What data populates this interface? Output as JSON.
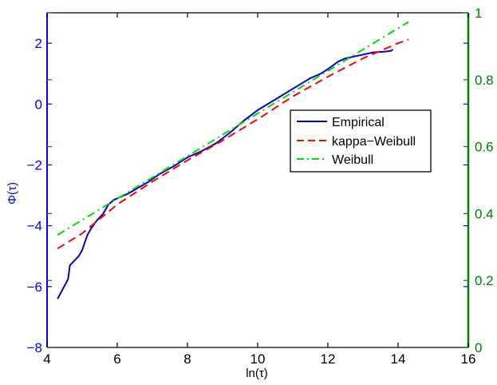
{
  "chart_data": {
    "type": "line",
    "xlabel": "ln(τ)",
    "ylabel": "Φ(τ)",
    "xlim": [
      4,
      16
    ],
    "ylim": [
      -8,
      3
    ],
    "xticks": [
      "4",
      "6",
      "8",
      "10",
      "12",
      "14",
      "16"
    ],
    "yticks_left": [
      "−8",
      "−6",
      "−4",
      "−2",
      "0",
      "2"
    ],
    "yticks_right": [
      "0",
      "0.2",
      "0.4",
      "0.6",
      "0.8",
      "1"
    ],
    "y2lim": [
      0,
      1
    ],
    "grid": false,
    "legend_position": "center-right",
    "colors": {
      "left_axis": "#0000ff",
      "right_axis": "#008000",
      "empirical": "#0000cc",
      "kappa": "#ff0000",
      "weibull": "#00dd00"
    },
    "series": [
      {
        "name": "Empirical",
        "style": "solid",
        "x": [
          4.3,
          4.6,
          4.65,
          4.9,
          5.0,
          5.15,
          5.25,
          5.4,
          5.6,
          5.75,
          5.9,
          6.1,
          6.3,
          6.6,
          6.9,
          7.2,
          7.6,
          8.0,
          8.4,
          8.8,
          9.2,
          9.6,
          10.0,
          10.5,
          11.0,
          11.5,
          11.8,
          12.0,
          12.3,
          12.5,
          12.9,
          13.3,
          13.6,
          13.8,
          13.85
        ],
        "y": [
          -6.4,
          -5.75,
          -5.3,
          -5.0,
          -4.8,
          -4.3,
          -4.1,
          -3.85,
          -3.6,
          -3.3,
          -3.15,
          -3.05,
          -2.95,
          -2.75,
          -2.55,
          -2.3,
          -2.05,
          -1.75,
          -1.55,
          -1.3,
          -0.95,
          -0.55,
          -0.2,
          0.15,
          0.5,
          0.85,
          1.0,
          1.15,
          1.4,
          1.5,
          1.6,
          1.7,
          1.72,
          1.75,
          1.8
        ]
      },
      {
        "name": "kappa−Weibull",
        "style": "dashed",
        "x": [
          4.3,
          5,
          6,
          7,
          8,
          9,
          10,
          11,
          12,
          13,
          14,
          14.3
        ],
        "y": [
          -4.75,
          -4.25,
          -3.3,
          -2.55,
          -1.85,
          -1.2,
          -0.5,
          0.25,
          0.9,
          1.5,
          2.0,
          2.12
        ]
      },
      {
        "name": "Weibull",
        "style": "dashdot",
        "x": [
          4.3,
          14.3
        ],
        "y": [
          -4.3,
          2.7
        ]
      }
    ]
  }
}
